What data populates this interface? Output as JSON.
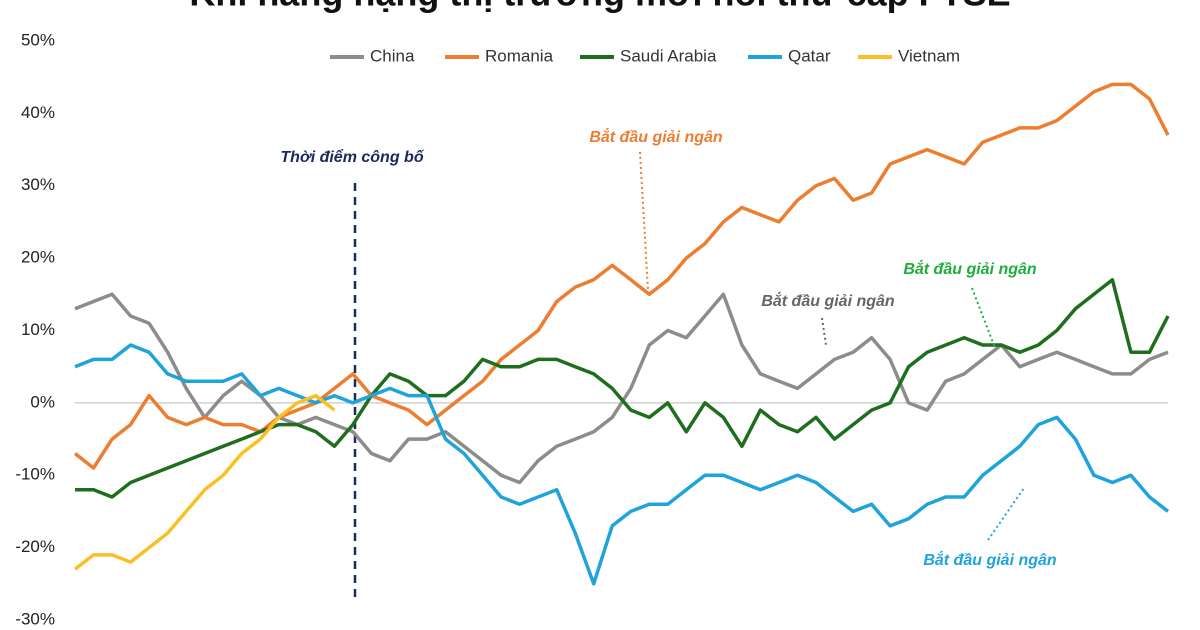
{
  "chart_data": {
    "type": "line",
    "title": "Khi nâng hạng thị trường mới nổi thứ cấp FTSE",
    "ylim": [
      -30,
      50
    ],
    "yticks": [
      {
        "value": 50,
        "label": "50%"
      },
      {
        "value": 40,
        "label": "40%"
      },
      {
        "value": 30,
        "label": "30%"
      },
      {
        "value": 20,
        "label": "20%"
      },
      {
        "value": 10,
        "label": "10%"
      },
      {
        "value": 0,
        "label": "0%"
      },
      {
        "value": -10,
        "label": "-10%"
      },
      {
        "value": -20,
        "label": "-20%"
      },
      {
        "value": -30,
        "label": "-30%"
      }
    ],
    "legend": "top",
    "annotations": [
      "Thời điểm công bố",
      "Bắt đầu giải ngân",
      "Bắt đầu giải ngân",
      "Bắt đầu giải ngân",
      "Bắt đầu giải ngân"
    ],
    "series": [
      {
        "name": "China",
        "color": "#8c8c8c",
        "values": [
          13,
          14,
          15,
          12,
          11,
          7,
          2,
          -2,
          1,
          3,
          1,
          -2,
          -3,
          -2,
          -3,
          -4,
          -7,
          -8,
          -5,
          -5,
          -4,
          -6,
          -8,
          -10,
          -11,
          -8,
          -6,
          -5,
          -4,
          -2,
          2,
          8,
          10,
          9,
          12,
          15,
          8,
          4,
          3,
          2,
          4,
          6,
          7,
          9,
          6,
          0,
          -1,
          3,
          4,
          6,
          8,
          5,
          6,
          7,
          6,
          5,
          4,
          4,
          6,
          7
        ]
      },
      {
        "name": "Romania",
        "color": "#ed7d31",
        "values": [
          -7,
          -9,
          -5,
          -3,
          1,
          -2,
          -3,
          -2,
          -3,
          -3,
          -4,
          -2,
          -1,
          0,
          2,
          4,
          1,
          0,
          -1,
          -3,
          -1,
          1,
          3,
          6,
          8,
          10,
          14,
          16,
          17,
          19,
          17,
          15,
          17,
          20,
          22,
          25,
          27,
          26,
          25,
          28,
          30,
          31,
          28,
          29,
          33,
          34,
          35,
          34,
          33,
          36,
          37,
          38,
          38,
          39,
          41,
          43,
          44,
          44,
          42,
          37
        ]
      },
      {
        "name": "Saudi Arabia",
        "color": "#1e6e1e",
        "values": [
          -12,
          -12,
          -13,
          -11,
          -10,
          -9,
          -8,
          -7,
          -6,
          -5,
          -4,
          -3,
          -3,
          -4,
          -6,
          -3,
          1,
          4,
          3,
          1,
          1,
          3,
          6,
          5,
          5,
          6,
          6,
          5,
          4,
          2,
          -1,
          -2,
          0,
          -4,
          0,
          -2,
          -6,
          -1,
          -3,
          -4,
          -2,
          -5,
          -3,
          -1,
          0,
          5,
          7,
          8,
          9,
          8,
          8,
          7,
          8,
          10,
          13,
          15,
          17,
          7,
          7,
          12
        ]
      },
      {
        "name": "Qatar",
        "color": "#1fa3dc",
        "values": [
          5,
          6,
          6,
          8,
          7,
          4,
          3,
          3,
          3,
          4,
          1,
          2,
          1,
          0,
          1,
          0,
          1,
          2,
          1,
          1,
          -5,
          -7,
          -10,
          -13,
          -14,
          -13,
          -12,
          -18,
          -25,
          -17,
          -15,
          -14,
          -14,
          -12,
          -10,
          -10,
          -11,
          -12,
          -11,
          -10,
          -11,
          -13,
          -15,
          -14,
          -17,
          -16,
          -14,
          -13,
          -13,
          -10,
          -8,
          -6,
          -3,
          -2,
          -5,
          -10,
          -11,
          -10,
          -13,
          -15
        ]
      },
      {
        "name": "Vietnam",
        "color": "#fbbf26",
        "values": [
          -23,
          -21,
          -21,
          -22,
          -20,
          -18,
          -15,
          -12,
          -10,
          -7,
          -5,
          -2,
          0,
          1,
          -1,
          null,
          null,
          null,
          null,
          null,
          null,
          null,
          null,
          null,
          null,
          null,
          null,
          null,
          null,
          null,
          null,
          null,
          null,
          null,
          null,
          null,
          null,
          null,
          null,
          null,
          null,
          null,
          null,
          null,
          null,
          null,
          null,
          null,
          null,
          null,
          null,
          null,
          null,
          null,
          null,
          null,
          null,
          null,
          null,
          null
        ]
      }
    ]
  }
}
